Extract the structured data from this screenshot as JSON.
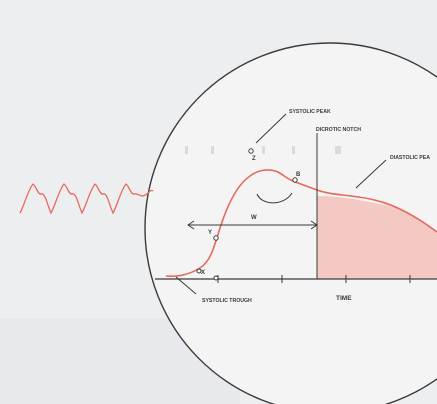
{
  "labels": {
    "systolic_peak": "SYSTOLIC PEAK",
    "dicrotic_notch": "DICROTIC NOTCH",
    "diastolic_peak": "DIASTOLIC PEA",
    "systolic_trough": "SYSTOLIC TROUGH",
    "time_axis": "TIME",
    "width": "W",
    "point_x": "X",
    "point_y": "Y",
    "point_z": "Z",
    "point_b": "B"
  },
  "colors": {
    "background": "#edeeef",
    "lens_fill": "#f4f4f5",
    "waveform": "#e56a5c",
    "shaded_area": "#f5c9c3",
    "ink": "#3a3a3a"
  }
}
